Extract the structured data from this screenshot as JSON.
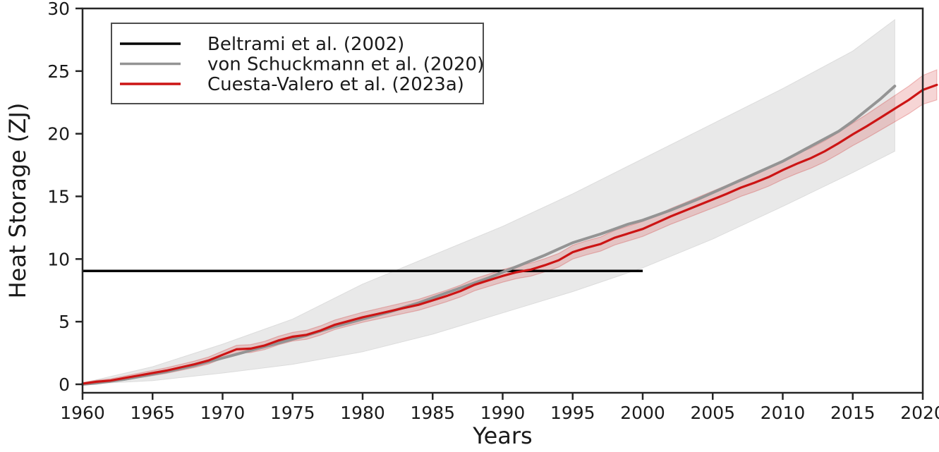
{
  "chart_data": {
    "type": "line",
    "title": "",
    "xlabel": "Years",
    "ylabel": "Heat Storage (ZJ)",
    "xlim": [
      1960,
      2020
    ],
    "ylim": [
      0,
      30
    ],
    "x_ticks": [
      1960,
      1965,
      1970,
      1975,
      1980,
      1985,
      1990,
      1995,
      2000,
      2005,
      2010,
      2015,
      2020
    ],
    "y_ticks": [
      0,
      5,
      10,
      15,
      20,
      25,
      30
    ],
    "grid": false,
    "legend_position": "upper-left",
    "colors": {
      "beltrami": "#000000",
      "von_schuckmann": "#949494",
      "von_schuckmann_band": "#e9e9e9",
      "cuesta_valero": "#cc1414",
      "cuesta_valero_band": "rgba(204,20,20,0.18)",
      "axis_text": "#1a1a1a",
      "spine": "#262626",
      "legend_border": "#4d4d4d"
    },
    "series": [
      {
        "name": "Beltrami et al. (2002)",
        "style": "horizontal-segment",
        "color_key": "beltrami",
        "value": 9.05,
        "x_start": 1960,
        "x_end": 2000
      },
      {
        "name": "von Schuckmann et al. (2020)",
        "style": "line-with-band",
        "color_key": "von_schuckmann",
        "band_color_key": "von_schuckmann_band",
        "x": [
          1960,
          1961,
          1962,
          1963,
          1964,
          1965,
          1966,
          1967,
          1968,
          1969,
          1970,
          1971,
          1972,
          1973,
          1974,
          1975,
          1976,
          1977,
          1978,
          1979,
          1980,
          1981,
          1982,
          1983,
          1984,
          1985,
          1986,
          1987,
          1988,
          1989,
          1990,
          1991,
          1992,
          1993,
          1994,
          1995,
          1996,
          1997,
          1998,
          1999,
          2000,
          2001,
          2002,
          2003,
          2004,
          2005,
          2006,
          2007,
          2008,
          2009,
          2010,
          2011,
          2012,
          2013,
          2014,
          2015,
          2016,
          2017,
          2018
        ],
        "values": [
          0.0,
          0.1,
          0.25,
          0.4,
          0.6,
          0.8,
          1.0,
          1.25,
          1.5,
          1.8,
          2.1,
          2.4,
          2.7,
          3.0,
          3.3,
          3.6,
          3.9,
          4.25,
          4.6,
          4.9,
          5.2,
          5.5,
          5.8,
          6.15,
          6.5,
          6.9,
          7.3,
          7.7,
          8.1,
          8.5,
          8.95,
          9.4,
          9.85,
          10.3,
          10.8,
          11.3,
          11.65,
          12.0,
          12.4,
          12.8,
          13.1,
          13.5,
          13.9,
          14.35,
          14.8,
          15.3,
          15.8,
          16.3,
          16.8,
          17.3,
          17.8,
          18.4,
          19.0,
          19.6,
          20.2,
          21.0,
          21.9,
          22.8,
          23.8
        ],
        "band_x": [
          1960,
          1965,
          1970,
          1975,
          1980,
          1985,
          1990,
          1995,
          2000,
          2005,
          2010,
          2015,
          2018
        ],
        "band_lower": [
          0.0,
          0.3,
          0.9,
          1.6,
          2.6,
          4.0,
          5.7,
          7.4,
          9.3,
          11.6,
          14.2,
          16.9,
          18.6
        ],
        "band_upper": [
          0.1,
          1.4,
          3.2,
          5.2,
          8.0,
          10.3,
          12.6,
          15.2,
          18.0,
          20.8,
          23.6,
          26.6,
          29.1
        ]
      },
      {
        "name": "Cuesta-Valero et al. (2023a)",
        "style": "line-with-band",
        "color_key": "cuesta_valero",
        "band_color_key": "cuesta_valero_band",
        "x": [
          1960,
          1961,
          1962,
          1963,
          1964,
          1965,
          1966,
          1967,
          1968,
          1969,
          1970,
          1971,
          1972,
          1973,
          1974,
          1975,
          1976,
          1977,
          1978,
          1979,
          1980,
          1981,
          1982,
          1983,
          1984,
          1985,
          1986,
          1987,
          1988,
          1989,
          1990,
          1991,
          1992,
          1993,
          1994,
          1995,
          1996,
          1997,
          1998,
          1999,
          2000,
          2001,
          2002,
          2003,
          2004,
          2005,
          2006,
          2007,
          2008,
          2009,
          2010,
          2011,
          2012,
          2013,
          2014,
          2015,
          2016,
          2017,
          2018,
          2019,
          2020,
          2021
        ],
        "values": [
          0.05,
          0.2,
          0.3,
          0.5,
          0.7,
          0.9,
          1.1,
          1.35,
          1.6,
          1.9,
          2.35,
          2.8,
          2.85,
          3.1,
          3.5,
          3.8,
          3.95,
          4.3,
          4.75,
          5.05,
          5.35,
          5.6,
          5.85,
          6.1,
          6.35,
          6.7,
          7.05,
          7.45,
          7.95,
          8.3,
          8.65,
          8.95,
          9.15,
          9.5,
          9.9,
          10.55,
          10.9,
          11.2,
          11.7,
          12.05,
          12.4,
          12.9,
          13.4,
          13.85,
          14.3,
          14.75,
          15.2,
          15.7,
          16.1,
          16.55,
          17.1,
          17.6,
          18.05,
          18.6,
          19.25,
          19.95,
          20.6,
          21.3,
          22.0,
          22.7,
          23.5,
          23.9
        ],
        "band_half_width_x": [
          1960,
          1970,
          1980,
          1990,
          2000,
          2010,
          2015,
          2021
        ],
        "band_half_width": [
          0.1,
          0.3,
          0.4,
          0.5,
          0.6,
          0.75,
          0.9,
          1.2
        ]
      }
    ],
    "legend": {
      "entries": [
        {
          "label": "Beltrami et al. (2002)",
          "color_key": "beltrami"
        },
        {
          "label": "von Schuckmann et al. (2020)",
          "color_key": "von_schuckmann"
        },
        {
          "label": "Cuesta-Valero et al. (2023a)",
          "color_key": "cuesta_valero"
        }
      ]
    }
  }
}
